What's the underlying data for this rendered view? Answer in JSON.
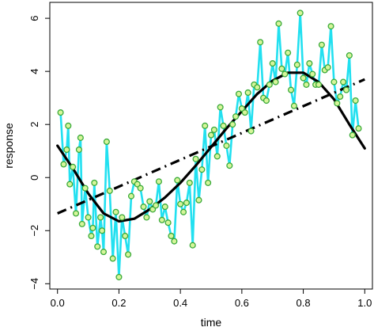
{
  "chart_data": {
    "type": "line",
    "title": "",
    "xlabel": "time",
    "ylabel": "response",
    "xlim": [
      -0.025,
      1.025
    ],
    "ylim": [
      -4.2,
      6.6
    ],
    "xticks": [
      0.0,
      0.2,
      0.4,
      0.6,
      0.8,
      1.0
    ],
    "xtick_labels": [
      "0.0",
      "0.2",
      "0.4",
      "0.6",
      "0.8",
      "1.0"
    ],
    "yticks": [
      -4,
      -2,
      0,
      2,
      4,
      6
    ],
    "ytick_labels": [
      "−4",
      "−2",
      "0",
      "2",
      "4",
      "6"
    ],
    "grid": false,
    "legend": false,
    "colors": {
      "observed_line": "#22e0f0",
      "observed_point_edge": "#3aaa3a",
      "observed_point_fill": "#d6f59a",
      "smooth_curve": "#000000",
      "linear_trend": "#000000"
    },
    "series": [
      {
        "style": "line-with-points",
        "x": [
          0.01,
          0.02,
          0.03,
          0.035,
          0.04,
          0.05,
          0.06,
          0.07,
          0.075,
          0.08,
          0.09,
          0.1,
          0.11,
          0.115,
          0.12,
          0.13,
          0.14,
          0.145,
          0.15,
          0.16,
          0.17,
          0.18,
          0.19,
          0.2,
          0.21,
          0.22,
          0.23,
          0.24,
          0.25,
          0.26,
          0.27,
          0.28,
          0.29,
          0.3,
          0.31,
          0.32,
          0.33,
          0.34,
          0.35,
          0.36,
          0.37,
          0.38,
          0.39,
          0.4,
          0.41,
          0.42,
          0.43,
          0.44,
          0.45,
          0.46,
          0.47,
          0.48,
          0.49,
          0.5,
          0.51,
          0.52,
          0.53,
          0.54,
          0.55,
          0.56,
          0.57,
          0.58,
          0.59,
          0.6,
          0.61,
          0.62,
          0.63,
          0.64,
          0.65,
          0.66,
          0.67,
          0.68,
          0.69,
          0.7,
          0.71,
          0.72,
          0.73,
          0.74,
          0.75,
          0.76,
          0.77,
          0.78,
          0.79,
          0.8,
          0.81,
          0.82,
          0.83,
          0.84,
          0.85,
          0.86,
          0.87,
          0.88,
          0.89,
          0.9,
          0.91,
          0.92,
          0.93,
          0.94,
          0.95,
          0.96,
          0.97,
          0.98
        ],
        "y": [
          2.45,
          0.5,
          1.05,
          1.95,
          -0.25,
          0.4,
          -1.35,
          1.05,
          1.5,
          -1.75,
          -0.4,
          -1.5,
          -2.2,
          -1.9,
          -0.2,
          -2.6,
          -1.5,
          -2.0,
          -2.8,
          1.35,
          -0.5,
          -3.05,
          -1.3,
          -3.75,
          -1.5,
          -2.2,
          -2.9,
          -0.7,
          -0.15,
          -0.25,
          -0.4,
          -1.1,
          -1.5,
          -0.9,
          -1.2,
          -1.05,
          -0.15,
          -1.6,
          -1.1,
          -1.7,
          -2.2,
          -2.4,
          -0.1,
          -1.0,
          -1.3,
          -0.95,
          -0.2,
          -2.55,
          0.7,
          -0.85,
          0.3,
          1.95,
          -0.2,
          1.6,
          1.8,
          0.8,
          2.65,
          1.95,
          1.2,
          0.45,
          2.0,
          2.3,
          3.15,
          2.6,
          2.45,
          3.2,
          1.75,
          3.5,
          3.4,
          5.1,
          3.0,
          2.9,
          3.5,
          4.3,
          3.6,
          5.8,
          4.1,
          3.9,
          4.7,
          3.3,
          2.7,
          4.25,
          6.2,
          3.75,
          3.5,
          4.3,
          3.9,
          3.5,
          3.5,
          5.0,
          4.05,
          4.15,
          5.7,
          3.6,
          2.8,
          3.05,
          3.6,
          3.3,
          4.6,
          1.6,
          2.9,
          1.85
        ]
      },
      {
        "style": "smooth-solid",
        "x": [
          0.0,
          0.05,
          0.1,
          0.15,
          0.2,
          0.25,
          0.3,
          0.35,
          0.4,
          0.45,
          0.5,
          0.55,
          0.6,
          0.65,
          0.7,
          0.75,
          0.8,
          0.85,
          0.9,
          0.95,
          1.0
        ],
        "y": [
          1.2,
          0.35,
          -0.6,
          -1.35,
          -1.65,
          -1.55,
          -1.2,
          -0.75,
          -0.2,
          0.45,
          1.15,
          1.85,
          2.5,
          3.15,
          3.65,
          3.95,
          3.95,
          3.6,
          2.95,
          2.0,
          1.1
        ]
      },
      {
        "style": "dash-dot",
        "x": [
          0.0,
          1.0
        ],
        "y": [
          -1.35,
          3.7
        ]
      }
    ]
  }
}
